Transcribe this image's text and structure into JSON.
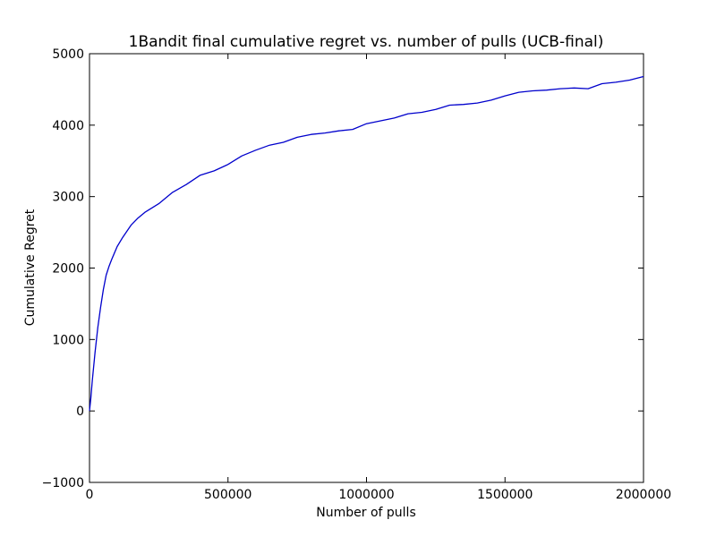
{
  "chart_data": {
    "type": "line",
    "title": "1Bandit final cumulative regret vs. number of pulls (UCB-final)",
    "xlabel": "Number of pulls",
    "ylabel": "Cumulative Regret",
    "xlim": [
      0,
      2000000
    ],
    "ylim": [
      -1000,
      5000
    ],
    "xticks": [
      0,
      500000,
      1000000,
      1500000,
      2000000
    ],
    "xtick_labels": [
      "0",
      "500000",
      "1000000",
      "1500000",
      "2000000"
    ],
    "yticks": [
      -1000,
      0,
      1000,
      2000,
      3000,
      4000,
      5000
    ],
    "ytick_labels": [
      "−1000",
      "0",
      "1000",
      "2000",
      "3000",
      "4000",
      "5000"
    ],
    "grid": false,
    "legend": "none",
    "series": [
      {
        "color": "#0000cc",
        "x": [
          0,
          5000,
          10000,
          20000,
          30000,
          40000,
          50000,
          60000,
          70000,
          80000,
          100000,
          120000,
          150000,
          175000,
          200000,
          250000,
          300000,
          350000,
          400000,
          450000,
          500000,
          550000,
          600000,
          650000,
          700000,
          750000,
          800000,
          850000,
          900000,
          950000,
          1000000,
          1100000,
          1150000,
          1200000,
          1250000,
          1300000,
          1350000,
          1400000,
          1450000,
          1500000,
          1550000,
          1600000,
          1650000,
          1700000,
          1750000,
          1800000,
          1850000,
          1900000,
          1950000,
          2000000
        ],
        "y": [
          0,
          180,
          420,
          820,
          1170,
          1450,
          1700,
          1900,
          2020,
          2120,
          2300,
          2430,
          2600,
          2700,
          2780,
          2900,
          3060,
          3170,
          3300,
          3360,
          3450,
          3570,
          3650,
          3720,
          3760,
          3830,
          3870,
          3890,
          3920,
          3940,
          4020,
          4100,
          4160,
          4180,
          4220,
          4280,
          4290,
          4310,
          4350,
          4410,
          4460,
          4480,
          4490,
          4510,
          4520,
          4510,
          4580,
          4600,
          4630,
          4680
        ]
      }
    ]
  }
}
